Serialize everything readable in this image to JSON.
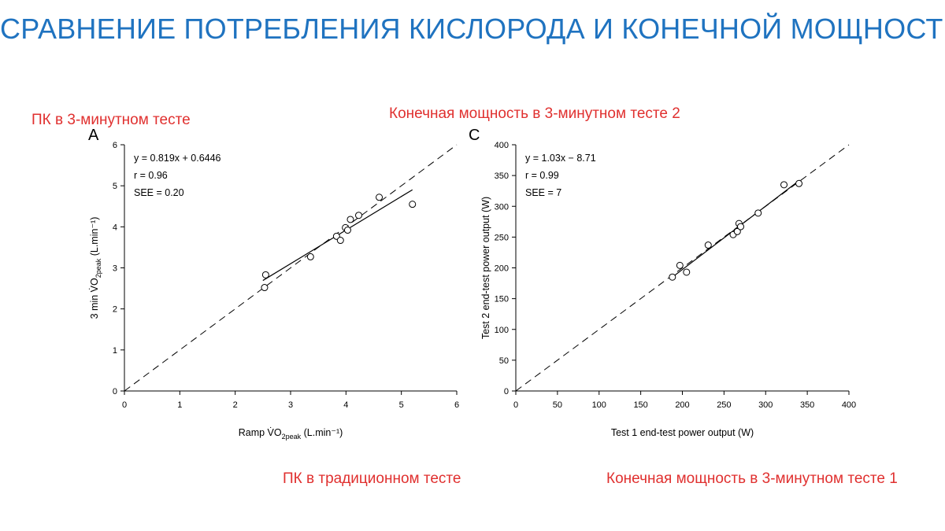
{
  "slide": {
    "title": "СРАВНЕНИЕ ПОТРЕБЛЕНИЯ КИСЛОРОДА И КОНЕЧНОЙ МОЩНОСТИ",
    "labels": {
      "a_top": "ПК в 3-минутном тесте",
      "a_bottom": "ПК в традиционном тесте",
      "c_top": "Конечная мощность в 3-минутном тесте 2",
      "c_bottom": "Конечная мощность в 3-минутном тесте 1"
    },
    "colors": {
      "title": "#1f73c0",
      "label": "#e0302f"
    }
  },
  "chart_data": [
    {
      "panel": "A",
      "type": "scatter",
      "xlabel": "Ramp V̇O2peak (L.min⁻¹)",
      "ylabel": "3 min V̇O2peak (L.min⁻¹)",
      "xlim": [
        0,
        6
      ],
      "ylim": [
        0,
        6
      ],
      "xticks": [
        0,
        1,
        2,
        3,
        4,
        5,
        6
      ],
      "yticks": [
        0,
        1,
        2,
        3,
        4,
        5,
        6
      ],
      "annotations": [
        "y = 0.819x + 0.6446",
        "r = 0.96",
        "SEE = 0.20"
      ],
      "points": [
        {
          "x": 2.53,
          "y": 2.52
        },
        {
          "x": 2.55,
          "y": 2.83
        },
        {
          "x": 3.36,
          "y": 3.27
        },
        {
          "x": 3.83,
          "y": 3.77
        },
        {
          "x": 3.9,
          "y": 3.67
        },
        {
          "x": 3.99,
          "y": 3.98
        },
        {
          "x": 4.03,
          "y": 3.92
        },
        {
          "x": 4.08,
          "y": 4.18
        },
        {
          "x": 4.23,
          "y": 4.28
        },
        {
          "x": 4.6,
          "y": 4.72
        },
        {
          "x": 5.2,
          "y": 4.55
        }
      ],
      "regression": {
        "slope": 0.819,
        "intercept": 0.6446,
        "x_range": [
          2.5,
          5.2
        ]
      },
      "identity_line": {
        "x_range": [
          0,
          6
        ]
      }
    },
    {
      "panel": "C",
      "type": "scatter",
      "xlabel": "Test 1 end-test power output (W)",
      "ylabel": "Test 2 end-test power output (W)",
      "xlim": [
        0,
        400
      ],
      "ylim": [
        0,
        400
      ],
      "xticks": [
        0,
        50,
        100,
        150,
        200,
        250,
        300,
        350,
        400
      ],
      "yticks": [
        0,
        50,
        100,
        150,
        200,
        250,
        300,
        350,
        400
      ],
      "annotations": [
        "y = 1.03x − 8.71",
        "r = 0.99",
        "SEE = 7"
      ],
      "points": [
        {
          "x": 188,
          "y": 185
        },
        {
          "x": 197,
          "y": 204
        },
        {
          "x": 205,
          "y": 193
        },
        {
          "x": 231,
          "y": 237
        },
        {
          "x": 261,
          "y": 254
        },
        {
          "x": 266,
          "y": 259
        },
        {
          "x": 268,
          "y": 272
        },
        {
          "x": 270,
          "y": 267
        },
        {
          "x": 291,
          "y": 289
        },
        {
          "x": 322,
          "y": 335
        },
        {
          "x": 340,
          "y": 337
        }
      ],
      "regression": {
        "slope": 1.03,
        "intercept": -8.71,
        "x_range": [
          185,
          340
        ]
      },
      "identity_line": {
        "x_range": [
          0,
          400
        ]
      }
    }
  ]
}
